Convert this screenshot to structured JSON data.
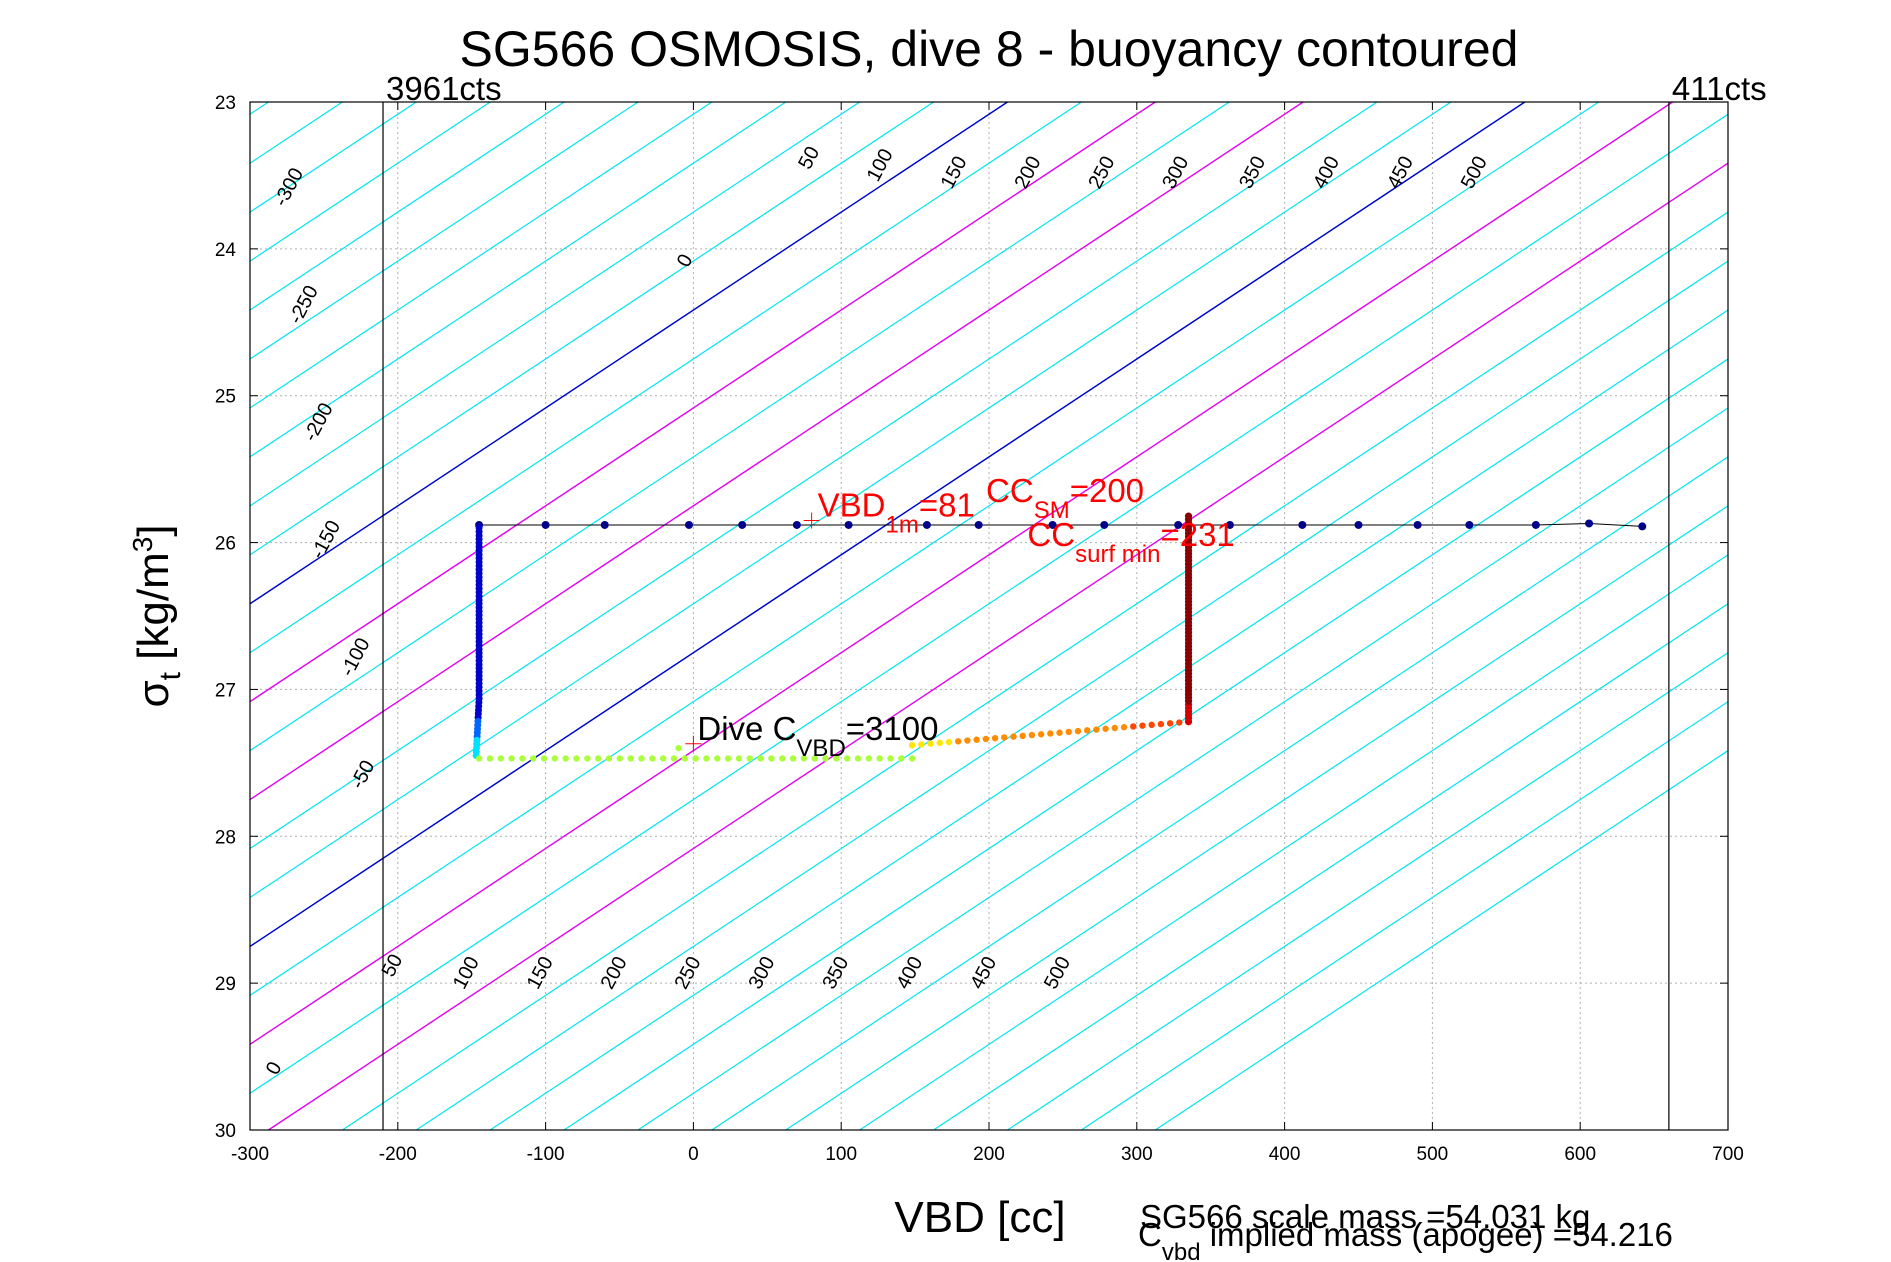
{
  "chart_data": {
    "type": "line",
    "title": "SG566 OSMOSIS, dive 8 - buoyancy contoured",
    "xlabel": "VBD [cc]",
    "ylabel_main": "σ",
    "ylabel_sub": "t",
    "ylabel_rest": " [kg/m",
    "ylabel_sup": "3",
    "ylabel_end": "]",
    "xlim": [
      -300,
      700
    ],
    "ylim": [
      23,
      30
    ],
    "y_reversed": true,
    "grid": true,
    "xticks": [
      -300,
      -200,
      -100,
      0,
      100,
      200,
      300,
      400,
      500,
      600,
      700
    ],
    "yticks": [
      23,
      24,
      25,
      26,
      27,
      28,
      29,
      30
    ],
    "contour_slope_cc_per_sigma": 150,
    "contour_levels": [
      -300,
      -250,
      -200,
      -150,
      -100,
      -50,
      0,
      50,
      100,
      150,
      200,
      250,
      300,
      350,
      400,
      450,
      500
    ],
    "contour_colors": {
      "default": "#00e5ee",
      "zero": "#0000cc",
      "highlight": "#ee00ee"
    },
    "highlight_levels": [
      100,
      200
    ],
    "contour_labels_upper": [
      {
        "text": "-300",
        "x": -270,
        "y": 23.6
      },
      {
        "text": "-250",
        "x": -260,
        "y": 24.4
      },
      {
        "text": "-200",
        "x": -250,
        "y": 25.2
      },
      {
        "text": "-150",
        "x": -245,
        "y": 26.0
      },
      {
        "text": "-100",
        "x": -225,
        "y": 26.8
      },
      {
        "text": "-50",
        "x": -220,
        "y": 27.6
      },
      {
        "text": "0",
        "x": -2,
        "y": 24.1
      },
      {
        "text": "50",
        "x": 82,
        "y": 23.4
      },
      {
        "text": "100",
        "x": 130,
        "y": 23.45
      },
      {
        "text": "150",
        "x": 180,
        "y": 23.5
      },
      {
        "text": "200",
        "x": 230,
        "y": 23.5
      },
      {
        "text": "250",
        "x": 280,
        "y": 23.5
      },
      {
        "text": "300",
        "x": 330,
        "y": 23.5
      },
      {
        "text": "350",
        "x": 382,
        "y": 23.5
      },
      {
        "text": "400",
        "x": 432,
        "y": 23.5
      },
      {
        "text": "450",
        "x": 482,
        "y": 23.5
      },
      {
        "text": "500",
        "x": 532,
        "y": 23.5
      }
    ],
    "contour_labels_lower": [
      {
        "text": "0",
        "x": -280,
        "y": 29.6
      },
      {
        "text": "50",
        "x": -200,
        "y": 28.9
      },
      {
        "text": "100",
        "x": -150,
        "y": 28.95
      },
      {
        "text": "150",
        "x": -100,
        "y": 28.95
      },
      {
        "text": "200",
        "x": -50,
        "y": 28.95
      },
      {
        "text": "250",
        "x": 0,
        "y": 28.95
      },
      {
        "text": "300",
        "x": 50,
        "y": 28.95
      },
      {
        "text": "350",
        "x": 100,
        "y": 28.95
      },
      {
        "text": "400",
        "x": 150,
        "y": 28.95
      },
      {
        "text": "450",
        "x": 200,
        "y": 28.95
      },
      {
        "text": "500",
        "x": 250,
        "y": 28.95
      }
    ],
    "vertical_lines": [
      {
        "x": -210,
        "label": "3961cts",
        "label_x": -210,
        "label_anchor": "start"
      },
      {
        "x": 660,
        "label": "411cts",
        "label_x": 660,
        "label_anchor": "start"
      }
    ],
    "series": [
      {
        "points": [
          {
            "x": -145,
            "y": 25.88,
            "c": "#00008b"
          },
          {
            "x": -100,
            "y": 25.88,
            "c": "#00008b"
          },
          {
            "x": -60,
            "y": 25.88,
            "c": "#00008b"
          },
          {
            "x": -3,
            "y": 25.88,
            "c": "#00008b"
          },
          {
            "x": 33,
            "y": 25.88,
            "c": "#00008b"
          },
          {
            "x": 70,
            "y": 25.88,
            "c": "#00008b"
          },
          {
            "x": 105,
            "y": 25.88,
            "c": "#00008b"
          },
          {
            "x": 158,
            "y": 25.88,
            "c": "#00008b"
          },
          {
            "x": 193,
            "y": 25.88,
            "c": "#00008b"
          },
          {
            "x": 243,
            "y": 25.88,
            "c": "#00008b"
          },
          {
            "x": 278,
            "y": 25.88,
            "c": "#00008b"
          },
          {
            "x": 328,
            "y": 25.88,
            "c": "#00008b"
          },
          {
            "x": 363,
            "y": 25.88,
            "c": "#00008b"
          },
          {
            "x": 412,
            "y": 25.88,
            "c": "#00008b"
          },
          {
            "x": 450,
            "y": 25.88,
            "c": "#00008b"
          },
          {
            "x": 490,
            "y": 25.88,
            "c": "#00008b"
          },
          {
            "x": 525,
            "y": 25.88,
            "c": "#00008b"
          },
          {
            "x": 570,
            "y": 25.88,
            "c": "#00008b"
          },
          {
            "x": 606,
            "y": 25.87,
            "c": "#00008b"
          },
          {
            "x": 642,
            "y": 25.89,
            "c": "#00008b"
          }
        ],
        "descent": {
          "top": {
            "x": -145,
            "y": 25.9
          },
          "bottom": {
            "x": -145,
            "y": 27.45
          },
          "kink_x": -147
        },
        "bottom_leg": {
          "x_start": -145,
          "x_end": 148,
          "y": 27.47
        },
        "ascent": {
          "x_start": 148,
          "y_start": 27.38,
          "x_turn": 335,
          "y_turn": 27.22,
          "y_top": 25.82
        }
      }
    ],
    "annotations": {
      "dive_c_vbd": {
        "prefix": "Dive C",
        "sub": "VBD",
        "suffix": "=3100",
        "x": 0,
        "y": 27.37
      },
      "vbd_1m": {
        "prefix": "VBD",
        "sub": "1m",
        "suffix": "=81",
        "x": 80,
        "y": 25.85
      },
      "cc_sm": {
        "prefix": "CC",
        "sub": "SM",
        "suffix": "=200",
        "x": 198,
        "y": 25.75
      },
      "cc_surf_min": {
        "prefix": "CC",
        "sub": "surf min",
        "suffix": "=231",
        "x": 226,
        "y": 26.05
      }
    },
    "footer": {
      "scale_mass": "SG566 scale mass =54.031 kg",
      "implied_prefix": "C",
      "implied_sub": "vbd",
      "implied_rest": " implied mass (apogee) =54.216"
    }
  }
}
